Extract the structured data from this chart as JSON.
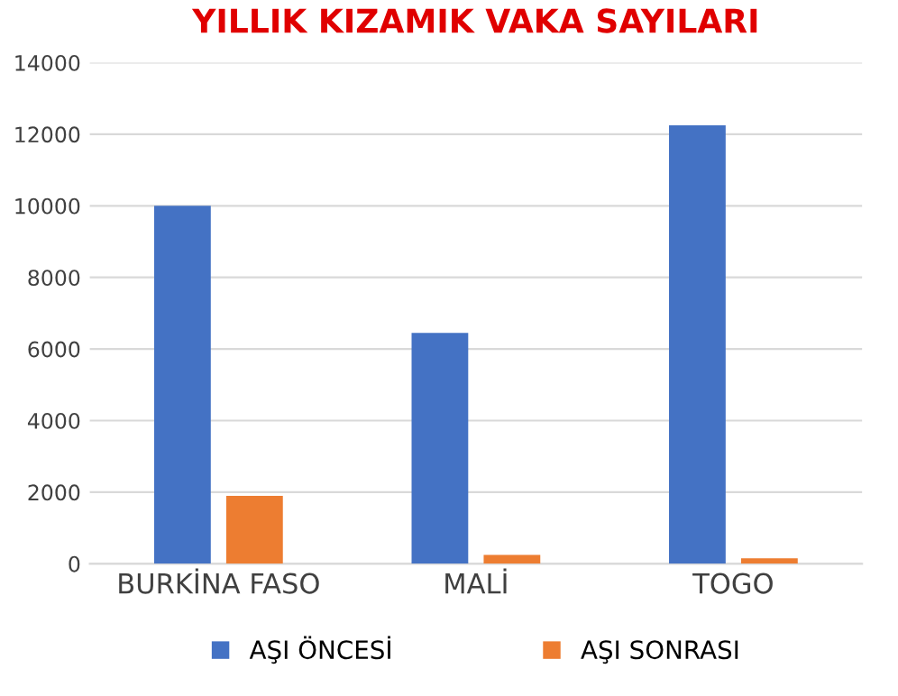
{
  "chart_data": {
    "type": "bar",
    "title": "YILLIK KIZAMIK VAKA SAYILARI",
    "categories": [
      "BURKİNA FASO",
      "MALİ",
      "TOGO"
    ],
    "series": [
      {
        "name": "AŞI ÖNCESİ",
        "color": "#4472c4",
        "values": [
          10000,
          6450,
          12250
        ]
      },
      {
        "name": "AŞI SONRASI",
        "color": "#ed7d31",
        "values": [
          1900,
          250,
          150
        ]
      }
    ],
    "ylim": [
      0,
      14000
    ],
    "yticks": [
      0,
      2000,
      4000,
      6000,
      8000,
      10000,
      12000,
      14000
    ],
    "grid": "y",
    "legend": "bottom"
  }
}
